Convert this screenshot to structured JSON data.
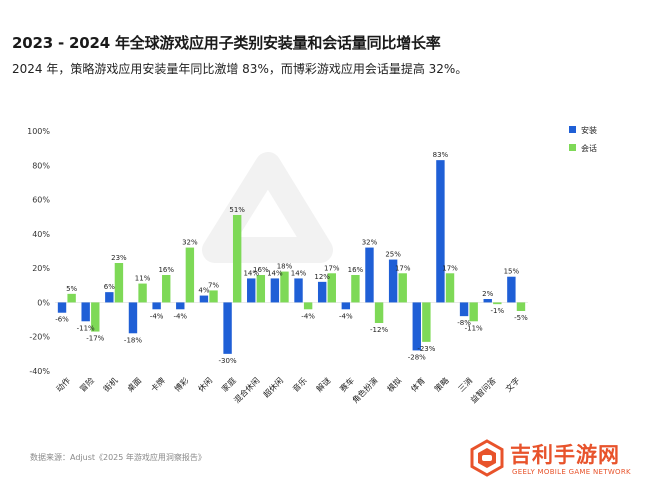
{
  "header": {
    "title": "2023 - 2024 年全球游戏应用子类别安装量和会话量同比增长率",
    "subtitle": "2024 年，策略游戏应用安装量年同比激增 83%，而博彩游戏应用会话量提高 32%。"
  },
  "footer": {
    "source": "数据来源：Adjust《2025 年游戏应用洞察报告》"
  },
  "watermark": {
    "brand": "吉利手游网",
    "sub": "GEELY MOBILE GAME NETWORK"
  },
  "chart_data": {
    "type": "bar",
    "categories": [
      "动作",
      "冒险",
      "街机",
      "桌面",
      "卡牌",
      "博彩",
      "休闲",
      "家庭",
      "混合休闲",
      "超休闲",
      "音乐",
      "解谜",
      "赛车",
      "角色扮演",
      "模拟",
      "体育",
      "策略",
      "三消",
      "益智问答",
      "文字"
    ],
    "series": [
      {
        "name": "安装",
        "color": "#1f5fd6",
        "values": [
          -6,
          -11,
          6,
          -18,
          -4,
          -4,
          4,
          -30,
          14,
          14,
          14,
          12,
          -4,
          32,
          25,
          -28,
          83,
          -8,
          2,
          15
        ]
      },
      {
        "name": "会话",
        "color": "#7ed957",
        "values": [
          5,
          -17,
          23,
          11,
          16,
          32,
          7,
          51,
          16,
          18,
          -4,
          17,
          16,
          -12,
          17,
          -23,
          17,
          -11,
          -1,
          -5
        ]
      }
    ],
    "ylim": [
      -40,
      100
    ],
    "yticks": [
      "-40%",
      "-20%",
      "0%",
      "20%",
      "40%",
      "60%",
      "80%",
      "100%"
    ],
    "legend_position": "top-right",
    "grid": false
  }
}
